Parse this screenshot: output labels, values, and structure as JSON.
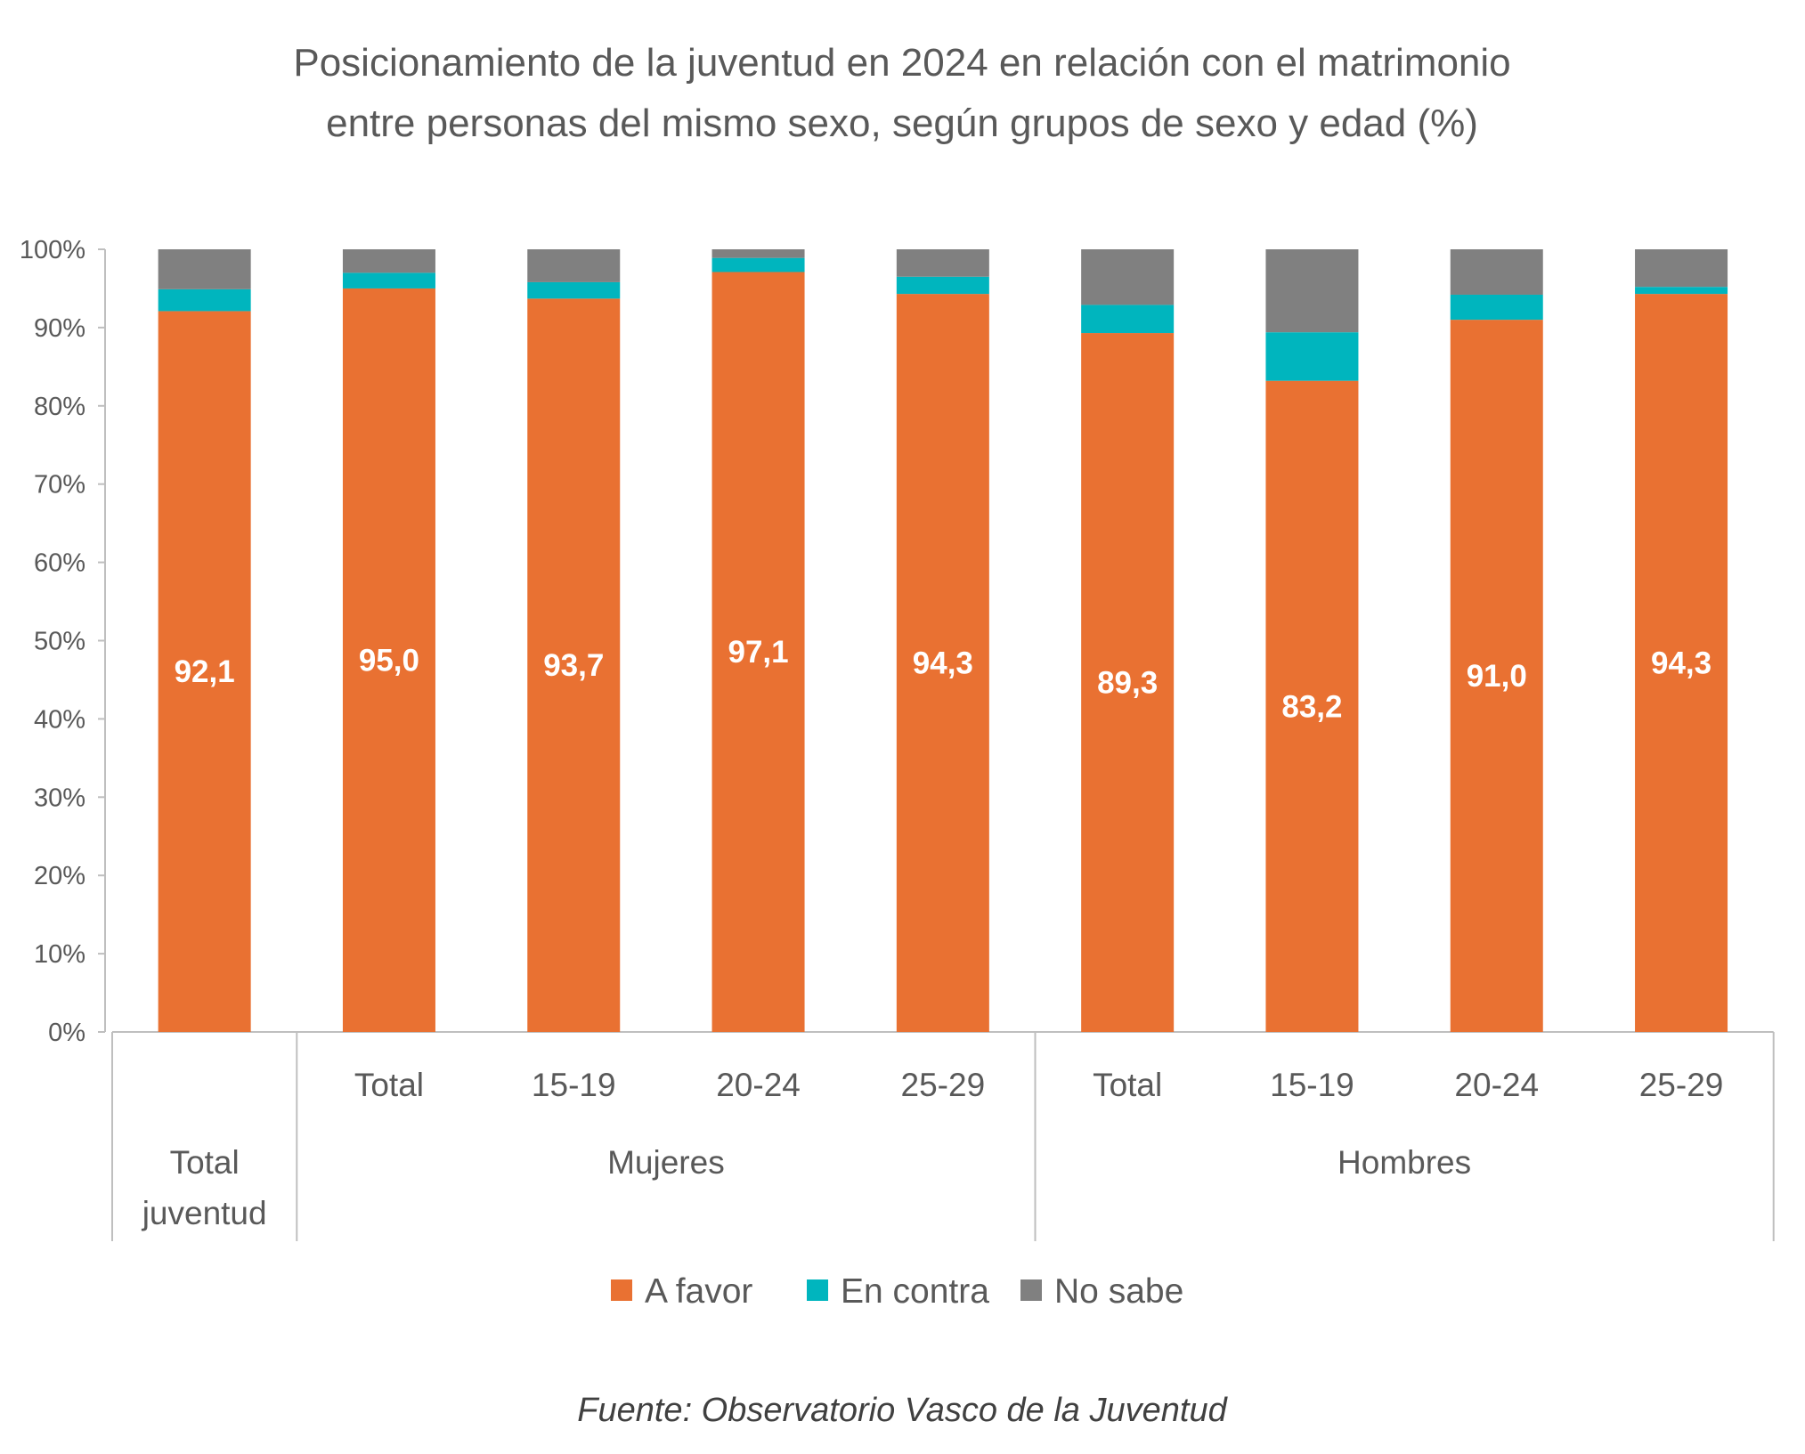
{
  "chart_data": {
    "type": "bar",
    "stacked": true,
    "title": [
      "Posicionamiento de la juventud en 2024 en relación con el matrimonio",
      "entre personas del mismo sexo, según grupos de sexo y edad (%)"
    ],
    "categories": [
      {
        "label": "",
        "group": "Total juventud"
      },
      {
        "label": "Total",
        "group": "Mujeres"
      },
      {
        "label": "15-19",
        "group": "Mujeres"
      },
      {
        "label": "20-24",
        "group": "Mujeres"
      },
      {
        "label": "25-29",
        "group": "Mujeres"
      },
      {
        "label": "Total",
        "group": "Hombres"
      },
      {
        "label": "15-19",
        "group": "Hombres"
      },
      {
        "label": "20-24",
        "group": "Hombres"
      },
      {
        "label": "25-29",
        "group": "Hombres"
      }
    ],
    "groups": [
      {
        "lines": [
          "Total",
          "juventud"
        ]
      },
      {
        "lines": [
          "Mujeres"
        ]
      },
      {
        "lines": [
          "Hombres"
        ]
      }
    ],
    "series": [
      {
        "name": "A favor",
        "color": "#E97132",
        "values": [
          92.1,
          95.0,
          93.7,
          97.1,
          94.3,
          89.3,
          83.2,
          91.0,
          94.3
        ],
        "labels": [
          "92,1",
          "95,0",
          "93,7",
          "97,1",
          "94,3",
          "89,3",
          "83,2",
          "91,0",
          "94,3"
        ]
      },
      {
        "name": "En contra",
        "color": "#00B5BE",
        "values": [
          2.8,
          2.0,
          2.1,
          1.8,
          2.2,
          3.6,
          6.2,
          3.2,
          0.9
        ]
      },
      {
        "name": "No sabe",
        "color": "#808080",
        "values": [
          5.1,
          3.0,
          4.2,
          1.1,
          3.5,
          7.1,
          10.6,
          5.8,
          4.8
        ]
      }
    ],
    "ylim": [
      0,
      100
    ],
    "yticks": [
      "0%",
      "10%",
      "20%",
      "30%",
      "40%",
      "50%",
      "60%",
      "70%",
      "80%",
      "90%",
      "100%"
    ],
    "grid": false,
    "legend": "bottom",
    "source": "Fuente: Observatorio Vasco de la Juventud"
  }
}
